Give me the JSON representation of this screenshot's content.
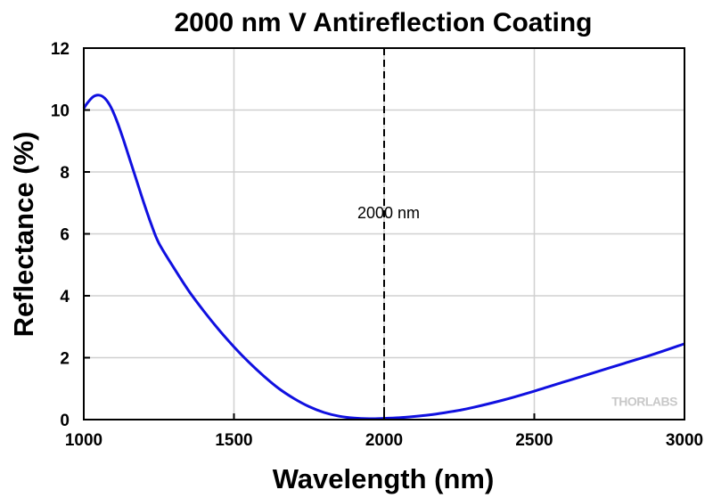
{
  "chart_data": {
    "type": "line",
    "title": "2000 nm V Antireflection Coating",
    "xlabel": "Wavelength (nm)",
    "ylabel": "Reflectance (%)",
    "xlim": [
      1000,
      3000
    ],
    "ylim": [
      0,
      12
    ],
    "xticks": [
      1000,
      1500,
      2000,
      2500,
      3000
    ],
    "yticks": [
      0,
      2,
      4,
      6,
      8,
      10,
      12
    ],
    "xtick_labels": [
      "1000",
      "1500",
      "2000",
      "2500",
      "3000"
    ],
    "ytick_labels": [
      "0",
      "2",
      "4",
      "6",
      "8",
      "10",
      "12"
    ],
    "grid": true,
    "series": [
      {
        "color": "#1010e0",
        "x": [
          1000,
          1010,
          1030,
          1050,
          1070,
          1090,
          1110,
          1130,
          1150,
          1175,
          1200,
          1225,
          1250,
          1300,
          1350,
          1400,
          1450,
          1500,
          1550,
          1600,
          1650,
          1700,
          1750,
          1800,
          1850,
          1900,
          1950,
          2000,
          2050,
          2100,
          2150,
          2200,
          2250,
          2300,
          2400,
          2500,
          2600,
          2700,
          2800,
          2900,
          3000
        ],
        "y": [
          10.05,
          10.2,
          10.42,
          10.48,
          10.38,
          10.1,
          9.65,
          9.1,
          8.5,
          7.75,
          7.0,
          6.3,
          5.7,
          4.9,
          4.15,
          3.5,
          2.9,
          2.35,
          1.85,
          1.4,
          1.0,
          0.68,
          0.42,
          0.23,
          0.11,
          0.05,
          0.03,
          0.04,
          0.06,
          0.1,
          0.15,
          0.22,
          0.3,
          0.4,
          0.64,
          0.92,
          1.22,
          1.52,
          1.82,
          2.12,
          2.45
        ]
      }
    ],
    "annotations": [
      {
        "text": "2000 nm",
        "marker_x": 2000,
        "style": "dashed-vertical-line"
      }
    ],
    "watermark": "THORLABS"
  }
}
